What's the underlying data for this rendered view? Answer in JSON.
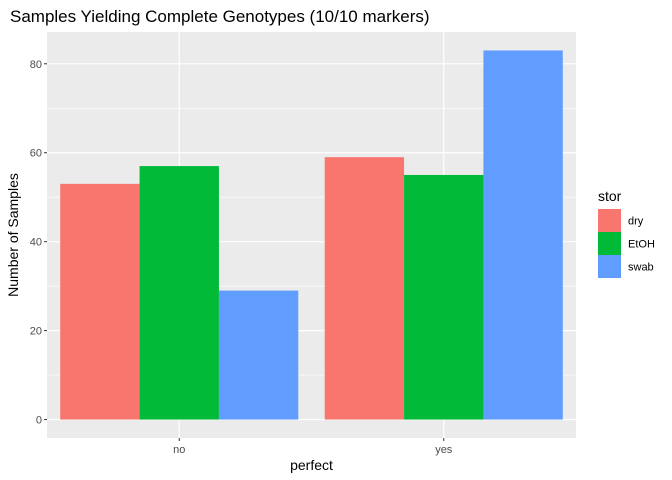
{
  "chart_data": {
    "type": "bar",
    "title": "Samples Yielding Complete Genotypes (10/10 markers)",
    "xlabel": "perfect",
    "ylabel": "Number of Samples",
    "categories": [
      "no",
      "yes"
    ],
    "series": [
      {
        "name": "dry",
        "values": [
          53,
          59
        ],
        "color": "#F8766D"
      },
      {
        "name": "EtOH",
        "values": [
          57,
          55
        ],
        "color": "#00BA38"
      },
      {
        "name": "swab",
        "values": [
          29,
          83
        ],
        "color": "#619CFF"
      }
    ],
    "ylim": [
      -4.15,
      87.15
    ],
    "yticks": [
      0,
      20,
      40,
      60,
      80
    ],
    "grid": true,
    "legend": {
      "title": "stor",
      "position": "right"
    },
    "colors": {
      "panel": "#EBEBEB",
      "grid": "#FFFFFF",
      "tick": "#333333"
    }
  }
}
